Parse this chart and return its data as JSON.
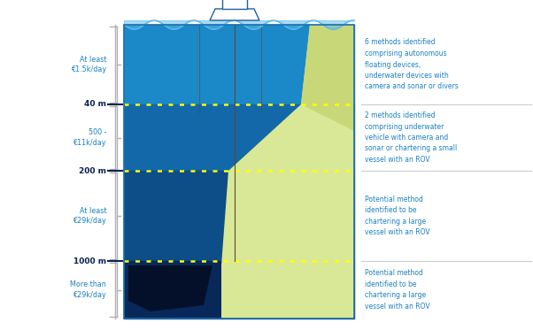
{
  "bg_color": "#ffffff",
  "ocean_shallow_color": "#1b88c8",
  "ocean_mid_color": "#1268a8",
  "ocean_deep_color": "#0d4d88",
  "ocean_deepest_color": "#08285a",
  "sandy_color": "#d8e896",
  "sandy_top_color": "#c8d878",
  "dotted_color": "#ffff00",
  "depth_tick_color": "#0a2050",
  "bracket_color": "#b0b0b0",
  "text_blue": "#1a80c0",
  "separator_color": "#cccccc",
  "depth_labels": [
    "40 m",
    "200 m",
    "1000 m"
  ],
  "cost_labels": [
    "At least\n€1.5k/day",
    "500 -\n€11k/day",
    "At least\n€29k/day",
    "More than\n€29k/day"
  ],
  "right_texts": [
    "6 methods identified\ncomprising autonomous\nfloating devices,\nunderwater devices with\ncamera and sonar or divers",
    "2 methods identified\ncomprising underwater\nvehicle with camera and\nsonar or chartering a small\nvessel with an ROV",
    "Potential method\nidentified to be\nchartering a large\nvessel with an ROV",
    "Potential method\nidentified to be\nchartering a large\nvessel with an ROV"
  ]
}
